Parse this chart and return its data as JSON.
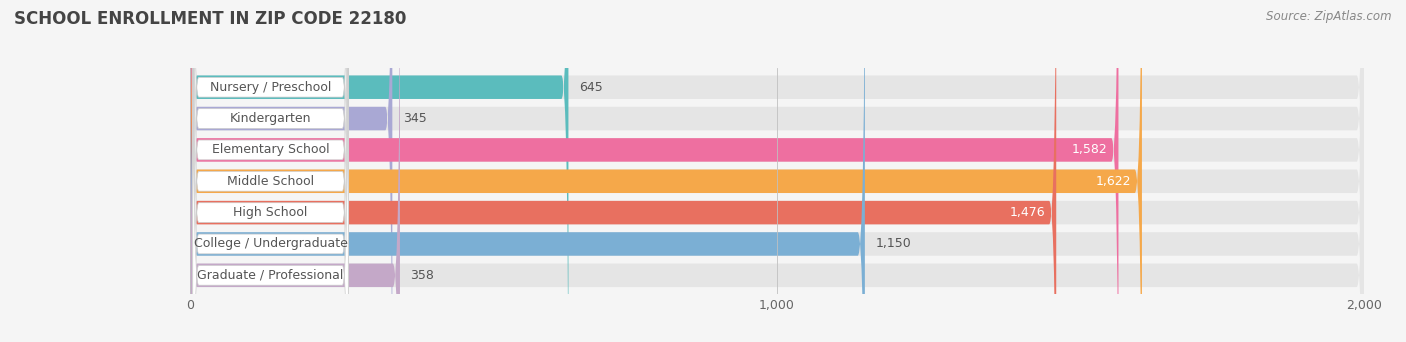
{
  "title": "SCHOOL ENROLLMENT IN ZIP CODE 22180",
  "source": "Source: ZipAtlas.com",
  "categories": [
    "Nursery / Preschool",
    "Kindergarten",
    "Elementary School",
    "Middle School",
    "High School",
    "College / Undergraduate",
    "Graduate / Professional"
  ],
  "values": [
    645,
    345,
    1582,
    1622,
    1476,
    1150,
    358
  ],
  "bar_colors": [
    "#5BBCBD",
    "#A9A8D4",
    "#EE6FA0",
    "#F5A84A",
    "#E87060",
    "#7BAFD4",
    "#C4A8C8"
  ],
  "value_label_colors": [
    "#333333",
    "#333333",
    "#ffffff",
    "#ffffff",
    "#ffffff",
    "#333333",
    "#333333"
  ],
  "xlim": [
    0,
    2000
  ],
  "xticks": [
    0,
    1000,
    2000
  ],
  "background_color": "#f5f5f5",
  "bar_background_color": "#e5e5e5",
  "title_fontsize": 12,
  "source_fontsize": 8.5,
  "label_fontsize": 9,
  "value_fontsize": 9
}
